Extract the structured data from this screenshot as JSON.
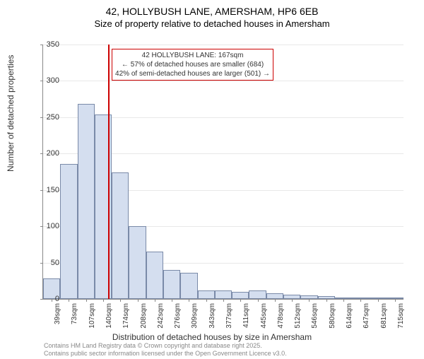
{
  "title": "42, HOLLYBUSH LANE, AMERSHAM, HP6 6EB",
  "subtitle": "Size of property relative to detached houses in Amersham",
  "chart": {
    "type": "histogram",
    "ylabel": "Number of detached properties",
    "xlabel": "Distribution of detached houses by size in Amersham",
    "ylim": [
      0,
      350
    ],
    "ytick_step": 50,
    "yticks": [
      0,
      50,
      100,
      150,
      200,
      250,
      300,
      350
    ],
    "bar_fill": "#d4deef",
    "bar_stroke": "#7a8aa8",
    "grid_color": "#e8e8e8",
    "background_color": "#ffffff",
    "categories": [
      "39sqm",
      "73sqm",
      "107sqm",
      "140sqm",
      "174sqm",
      "208sqm",
      "242sqm",
      "276sqm",
      "309sqm",
      "343sqm",
      "377sqm",
      "411sqm",
      "445sqm",
      "478sqm",
      "512sqm",
      "546sqm",
      "580sqm",
      "614sqm",
      "647sqm",
      "681sqm",
      "715sqm"
    ],
    "values": [
      28,
      186,
      268,
      254,
      174,
      100,
      65,
      40,
      36,
      12,
      12,
      10,
      12,
      8,
      6,
      5,
      4,
      2,
      0,
      2,
      2
    ],
    "marker": {
      "value_sqm": 167,
      "bin_index_before": 3,
      "fraction_into_bin": 0.79,
      "color": "#cc0000",
      "line_width": 2
    },
    "annotation": {
      "line1": "42 HOLLYBUSH LANE: 167sqm",
      "line2": "← 57% of detached houses are smaller (684)",
      "line3": "42% of semi-detached houses are larger (501) →",
      "border_color": "#cc0000",
      "background": "#ffffff",
      "fontsize": 10
    }
  },
  "footer": {
    "line1": "Contains HM Land Registry data © Crown copyright and database right 2025.",
    "line2": "Contains public sector information licensed under the Open Government Licence v3.0."
  }
}
